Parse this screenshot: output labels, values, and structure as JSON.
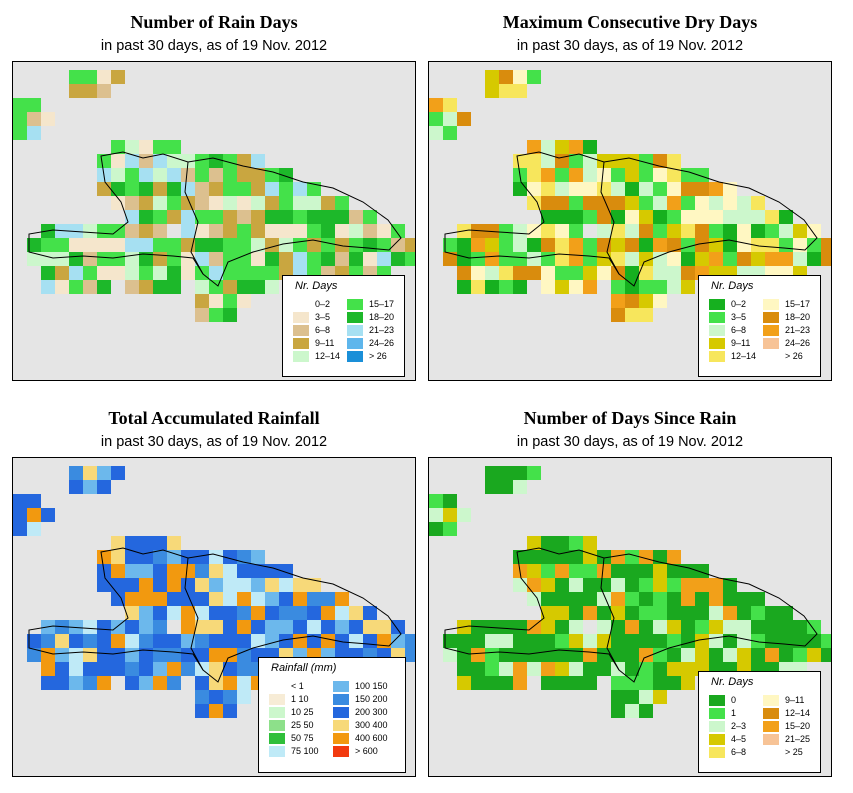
{
  "panels": [
    {
      "title": "Number of Rain Days",
      "subtitle": "in past 30 days, as of  19 Nov. 2012",
      "legend_title": "Nr. Days",
      "legend": [
        {
          "label": "0–2",
          "color": "#ffffff"
        },
        {
          "label": "3–5",
          "color": "#f5e6cc"
        },
        {
          "label": "6–8",
          "color": "#dcc08f"
        },
        {
          "label": "9–11",
          "color": "#c9a640"
        },
        {
          "label": "12–14",
          "color": "#ccf7cc"
        },
        {
          "label": "15–17",
          "color": "#44e14a"
        },
        {
          "label": "18–20",
          "color": "#1db82a"
        },
        {
          "label": "21–23",
          "color": "#a6e0f2"
        },
        {
          "label": "24–26",
          "color": "#5eb6ec"
        },
        {
          "label": "> 26",
          "color": "#1a8fd8"
        }
      ]
    },
    {
      "title": "Maximum Consecutive Dry Days",
      "subtitle": "in past 30 days, as of  19 Nov. 2012",
      "legend_title": "Nr. Days",
      "legend": [
        {
          "label": "0–2",
          "color": "#16b01f"
        },
        {
          "label": "3–5",
          "color": "#44e14a"
        },
        {
          "label": "6–8",
          "color": "#ccf7cc"
        },
        {
          "label": "9–11",
          "color": "#d6c900"
        },
        {
          "label": "12–14",
          "color": "#f7e65c"
        },
        {
          "label": "15–17",
          "color": "#fff7c2"
        },
        {
          "label": "18–20",
          "color": "#d98c0d"
        },
        {
          "label": "21–23",
          "color": "#f2a019"
        },
        {
          "label": "24–26",
          "color": "#f7c396"
        },
        {
          "label": "> 26",
          "color": "#ffffff"
        }
      ]
    },
    {
      "title": "Total Accumulated Rainfall",
      "subtitle": "in past 30 days, as of  19 Nov. 2012",
      "legend_title": "Rainfall (mm)",
      "legend": [
        {
          "label": "< 1",
          "color": "#ffffff"
        },
        {
          "label": "1   10",
          "color": "#f7ecd6"
        },
        {
          "label": "10   25",
          "color": "#ccf7cc"
        },
        {
          "label": "25   50",
          "color": "#8de08a"
        },
        {
          "label": "50   75",
          "color": "#2fbf3a"
        },
        {
          "label": "75   100",
          "color": "#bfeaf7"
        },
        {
          "label": "100   150",
          "color": "#6cb8ec"
        },
        {
          "label": "150   200",
          "color": "#3a8be0"
        },
        {
          "label": "200   300",
          "color": "#2467de"
        },
        {
          "label": "300   400",
          "color": "#f7d979"
        },
        {
          "label": "400   600",
          "color": "#f2990f"
        },
        {
          "label": "> 600",
          "color": "#f23a0f"
        }
      ]
    },
    {
      "title": "Number of Days Since Rain",
      "subtitle": "in past 30 days, as of  19 Nov. 2012",
      "legend_title": "Nr. Days",
      "legend": [
        {
          "label": "0",
          "color": "#1aa81f"
        },
        {
          "label": "1",
          "color": "#44e14a"
        },
        {
          "label": "2–3",
          "color": "#ccf7cc"
        },
        {
          "label": "4–5",
          "color": "#d6c900"
        },
        {
          "label": "6–8",
          "color": "#f7e65c"
        },
        {
          "label": "9–11",
          "color": "#fff7c2"
        },
        {
          "label": "12–14",
          "color": "#d98c0d"
        },
        {
          "label": "15–20",
          "color": "#f2a019"
        },
        {
          "label": "21–25",
          "color": "#f7c396"
        },
        {
          "label": "> 25",
          "color": "#ffffff"
        }
      ]
    }
  ]
}
